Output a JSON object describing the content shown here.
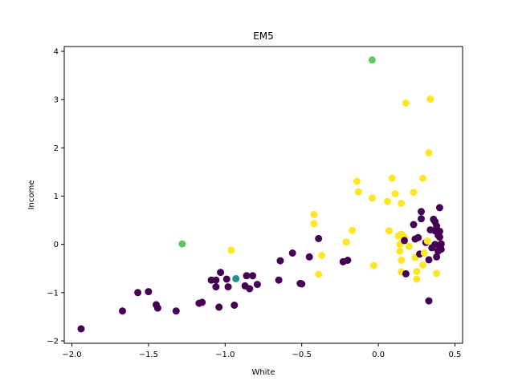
{
  "chart_data": {
    "type": "scatter",
    "title": "EM5",
    "xlabel": "White",
    "ylabel": "Income",
    "xlim": [
      -2.05,
      0.55
    ],
    "ylim": [
      -2.05,
      4.1
    ],
    "xticks": [
      -2.0,
      -1.5,
      -1.0,
      -0.5,
      0.0,
      0.5
    ],
    "yticks": [
      -2,
      -1,
      0,
      1,
      2,
      3,
      4
    ],
    "xtick_labels": [
      "−2.0",
      "−1.5",
      "−1.0",
      "−0.5",
      "0.0",
      "0.5"
    ],
    "ytick_labels": [
      "−2",
      "−1",
      "0",
      "1",
      "2",
      "3",
      "4"
    ],
    "grid": false,
    "legend": "none",
    "cluster_colors": {
      "0": "#440154",
      "1": "#21918c",
      "2": "#5ec962",
      "3": "#fde725"
    },
    "points": [
      {
        "x": -1.94,
        "y": -1.75,
        "c": 0
      },
      {
        "x": -1.67,
        "y": -1.38,
        "c": 0
      },
      {
        "x": -1.57,
        "y": -1.0,
        "c": 0
      },
      {
        "x": -1.5,
        "y": -0.98,
        "c": 0
      },
      {
        "x": -1.45,
        "y": -1.25,
        "c": 0
      },
      {
        "x": -1.44,
        "y": -1.32,
        "c": 0
      },
      {
        "x": -1.32,
        "y": -1.38,
        "c": 0
      },
      {
        "x": -1.28,
        "y": 0.01,
        "c": 2
      },
      {
        "x": -1.17,
        "y": -1.22,
        "c": 0
      },
      {
        "x": -1.15,
        "y": -1.2,
        "c": 0
      },
      {
        "x": -1.09,
        "y": -0.74,
        "c": 0
      },
      {
        "x": -1.06,
        "y": -0.88,
        "c": 0
      },
      {
        "x": -1.06,
        "y": -0.74,
        "c": 0
      },
      {
        "x": -1.04,
        "y": -1.3,
        "c": 0
      },
      {
        "x": -1.03,
        "y": -0.58,
        "c": 0
      },
      {
        "x": -0.99,
        "y": -0.72,
        "c": 0
      },
      {
        "x": -0.98,
        "y": -0.88,
        "c": 0
      },
      {
        "x": -0.96,
        "y": -0.12,
        "c": 3
      },
      {
        "x": -0.94,
        "y": -1.26,
        "c": 0
      },
      {
        "x": -0.93,
        "y": -0.71,
        "c": 1
      },
      {
        "x": -0.87,
        "y": -0.86,
        "c": 0
      },
      {
        "x": -0.86,
        "y": -0.65,
        "c": 0
      },
      {
        "x": -0.84,
        "y": -0.92,
        "c": 0
      },
      {
        "x": -0.82,
        "y": -0.65,
        "c": 0
      },
      {
        "x": -0.79,
        "y": -0.83,
        "c": 0
      },
      {
        "x": -0.65,
        "y": -0.74,
        "c": 0
      },
      {
        "x": -0.64,
        "y": -0.34,
        "c": 0
      },
      {
        "x": -0.56,
        "y": -0.18,
        "c": 0
      },
      {
        "x": -0.51,
        "y": -0.81,
        "c": 0
      },
      {
        "x": -0.5,
        "y": -0.82,
        "c": 0
      },
      {
        "x": -0.45,
        "y": -0.26,
        "c": 0
      },
      {
        "x": -0.42,
        "y": 0.62,
        "c": 3
      },
      {
        "x": -0.42,
        "y": 0.43,
        "c": 3
      },
      {
        "x": -0.39,
        "y": 0.12,
        "c": 0
      },
      {
        "x": -0.39,
        "y": -0.62,
        "c": 3
      },
      {
        "x": -0.37,
        "y": -0.23,
        "c": 3
      },
      {
        "x": -0.23,
        "y": -0.36,
        "c": 0
      },
      {
        "x": -0.21,
        "y": 0.05,
        "c": 3
      },
      {
        "x": -0.2,
        "y": -0.33,
        "c": 0
      },
      {
        "x": -0.17,
        "y": 0.29,
        "c": 3
      },
      {
        "x": -0.14,
        "y": 1.31,
        "c": 3
      },
      {
        "x": -0.13,
        "y": 1.09,
        "c": 3
      },
      {
        "x": -0.04,
        "y": 3.82,
        "c": 2
      },
      {
        "x": -0.04,
        "y": 0.96,
        "c": 3
      },
      {
        "x": -0.03,
        "y": -0.44,
        "c": 3
      },
      {
        "x": 0.06,
        "y": 0.89,
        "c": 3
      },
      {
        "x": 0.07,
        "y": 0.28,
        "c": 3
      },
      {
        "x": 0.09,
        "y": 1.37,
        "c": 3
      },
      {
        "x": 0.11,
        "y": 1.05,
        "c": 3
      },
      {
        "x": 0.13,
        "y": 0.17,
        "c": 3
      },
      {
        "x": 0.14,
        "y": 0.0,
        "c": 3
      },
      {
        "x": 0.14,
        "y": -0.14,
        "c": 3
      },
      {
        "x": 0.15,
        "y": 0.21,
        "c": 3
      },
      {
        "x": 0.15,
        "y": -0.33,
        "c": 3
      },
      {
        "x": 0.15,
        "y": 0.85,
        "c": 3
      },
      {
        "x": 0.15,
        "y": -0.57,
        "c": 3
      },
      {
        "x": 0.17,
        "y": 0.15,
        "c": 3
      },
      {
        "x": 0.17,
        "y": 0.08,
        "c": 0
      },
      {
        "x": 0.18,
        "y": 2.93,
        "c": 3
      },
      {
        "x": 0.18,
        "y": -0.61,
        "c": 0
      },
      {
        "x": 0.2,
        "y": -0.04,
        "c": 3
      },
      {
        "x": 0.23,
        "y": 1.08,
        "c": 3
      },
      {
        "x": 0.23,
        "y": 0.41,
        "c": 0
      },
      {
        "x": 0.24,
        "y": 0.11,
        "c": 0
      },
      {
        "x": 0.24,
        "y": -0.27,
        "c": 3
      },
      {
        "x": 0.25,
        "y": -0.72,
        "c": 3
      },
      {
        "x": 0.25,
        "y": -0.56,
        "c": 3
      },
      {
        "x": 0.26,
        "y": 0.14,
        "c": 0
      },
      {
        "x": 0.27,
        "y": -0.2,
        "c": 0
      },
      {
        "x": 0.28,
        "y": 0.53,
        "c": 0
      },
      {
        "x": 0.28,
        "y": 0.68,
        "c": 0
      },
      {
        "x": 0.29,
        "y": 1.37,
        "c": 3
      },
      {
        "x": 0.29,
        "y": -0.43,
        "c": 3
      },
      {
        "x": 0.3,
        "y": -0.18,
        "c": 3
      },
      {
        "x": 0.31,
        "y": 0.04,
        "c": 0
      },
      {
        "x": 0.32,
        "y": 0.07,
        "c": 3
      },
      {
        "x": 0.33,
        "y": 1.9,
        "c": 3
      },
      {
        "x": 0.33,
        "y": -0.32,
        "c": 0
      },
      {
        "x": 0.33,
        "y": -1.17,
        "c": 0
      },
      {
        "x": 0.34,
        "y": 3.01,
        "c": 3
      },
      {
        "x": 0.34,
        "y": 0.3,
        "c": 0
      },
      {
        "x": 0.35,
        "y": -0.07,
        "c": 0
      },
      {
        "x": 0.36,
        "y": 0.52,
        "c": 0
      },
      {
        "x": 0.37,
        "y": 0.28,
        "c": 0
      },
      {
        "x": 0.37,
        "y": 0.47,
        "c": 0
      },
      {
        "x": 0.37,
        "y": 0.0,
        "c": 0
      },
      {
        "x": 0.38,
        "y": -0.26,
        "c": 0
      },
      {
        "x": 0.38,
        "y": -0.6,
        "c": 3
      },
      {
        "x": 0.38,
        "y": 0.38,
        "c": 0
      },
      {
        "x": 0.39,
        "y": 0.19,
        "c": 0
      },
      {
        "x": 0.39,
        "y": -0.14,
        "c": 0
      },
      {
        "x": 0.4,
        "y": 0.76,
        "c": 0
      },
      {
        "x": 0.4,
        "y": 0.27,
        "c": 0
      },
      {
        "x": 0.4,
        "y": 0.15,
        "c": 0
      },
      {
        "x": 0.4,
        "y": -0.05,
        "c": 0
      },
      {
        "x": 0.41,
        "y": 0.01,
        "c": 0
      },
      {
        "x": 0.41,
        "y": -0.1,
        "c": 0
      }
    ]
  }
}
